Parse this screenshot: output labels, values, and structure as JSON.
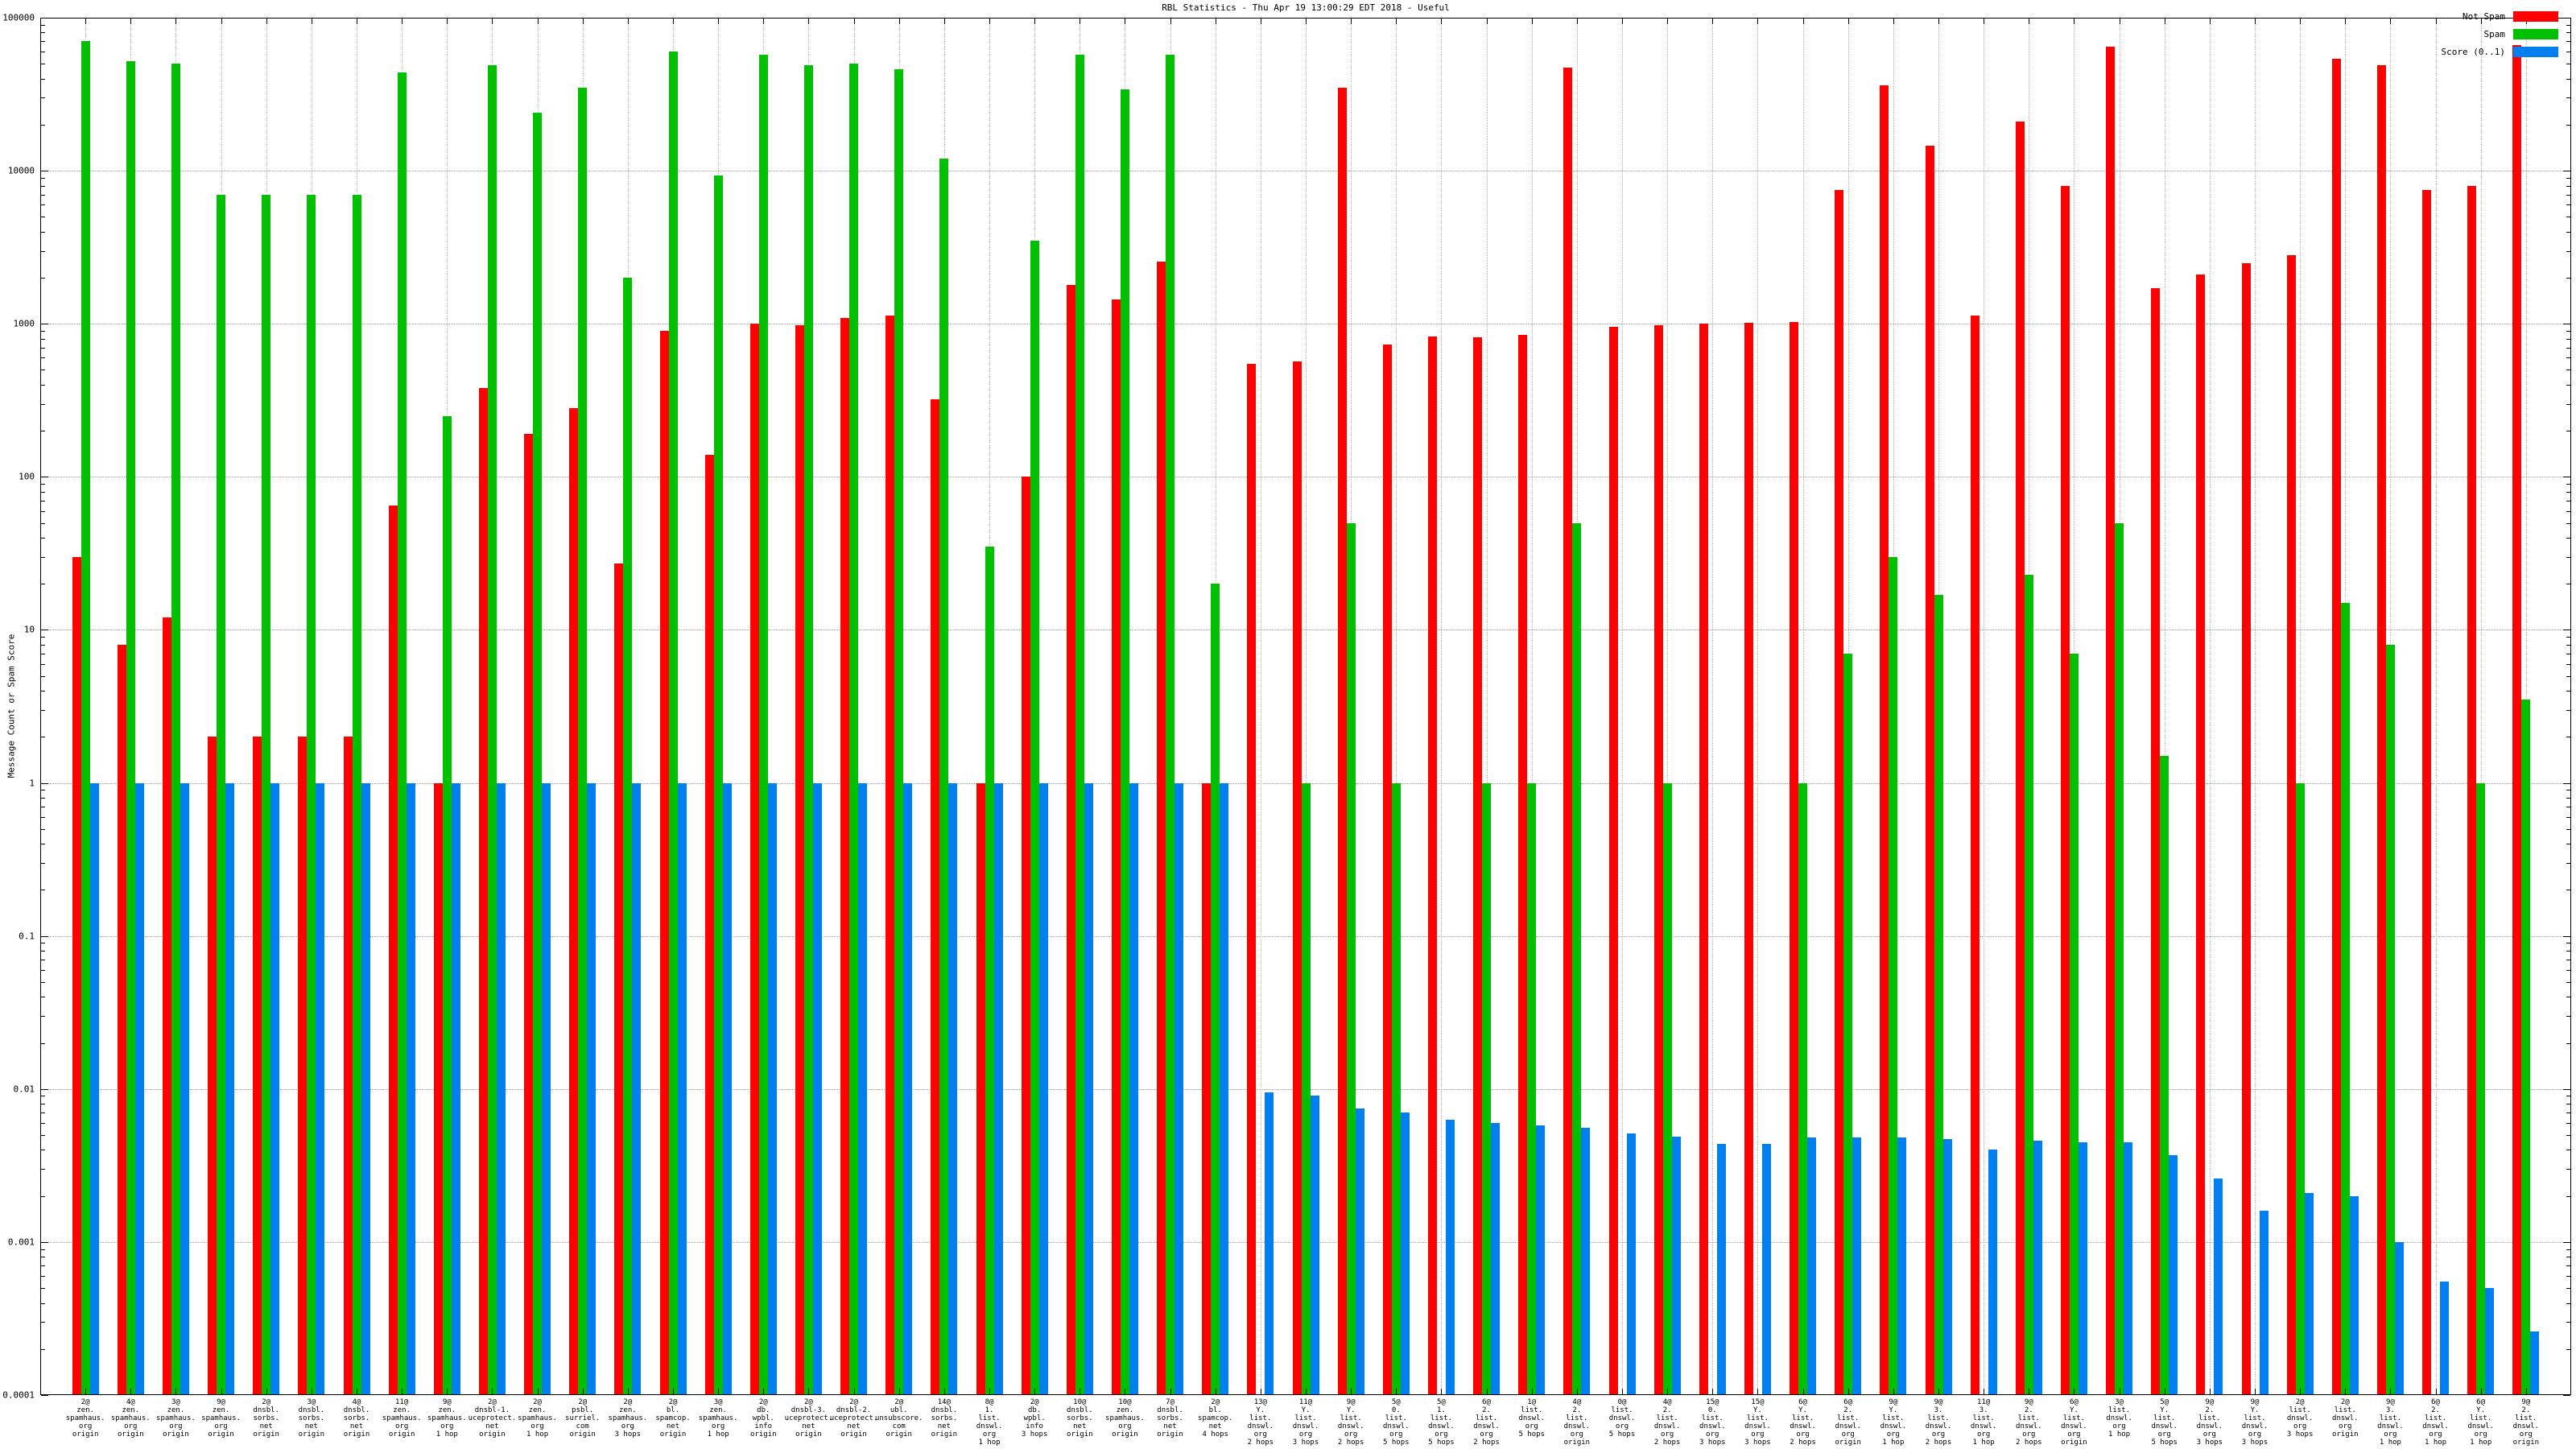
{
  "title": "RBL Statistics - Thu Apr 19 13:00:29 EDT 2018 - Useful",
  "y_axis": {
    "label": "Message Count or Spam Score",
    "scale": "log",
    "ticks": [
      "100000",
      "10000",
      "1000",
      "100",
      "10",
      "1",
      "0.1",
      "0.01",
      "0.001",
      "0.0001"
    ]
  },
  "legend": [
    {
      "name": "not-spam",
      "label": "Not Spam",
      "color": "#ff0000"
    },
    {
      "name": "spam",
      "label": "Spam",
      "color": "#00c000"
    },
    {
      "name": "score",
      "label": "Score (0..1)",
      "color": "#0080f0"
    }
  ],
  "chart_data": {
    "type": "bar",
    "title": "RBL Statistics - Thu Apr 19 13:00:29 EDT 2018 - Useful",
    "xlabel": "",
    "ylabel": "Message Count or Spam Score",
    "yscale": "log",
    "ylim": [
      0.0001,
      100000
    ],
    "grid": true,
    "legend_position": "top-right",
    "series_names": [
      "Not Spam",
      "Spam",
      "Score (0..1)"
    ],
    "series_colors": {
      "not_spam": "#ff0000",
      "spam": "#00c000",
      "score": "#0080f0"
    },
    "groups": [
      {
        "label": "2@\nzen.\nspamhaus.\norg\norigin",
        "not_spam": 30,
        "spam": 70000,
        "score": 1
      },
      {
        "label": "4@\nzen.\nspamhaus.\norg\norigin",
        "not_spam": 8,
        "spam": 52000,
        "score": 1
      },
      {
        "label": "3@\nzen.\nspamhaus.\norg\norigin",
        "not_spam": 12,
        "spam": 50000,
        "score": 1
      },
      {
        "label": "9@\nzen.\nspamhaus.\norg\norigin",
        "not_spam": 2,
        "spam": 7000,
        "score": 1
      },
      {
        "label": "2@\ndnsbl.\nsorbs.\nnet\norigin",
        "not_spam": 2,
        "spam": 7000,
        "score": 1
      },
      {
        "label": "3@\ndnsbl.\nsorbs.\nnet\norigin",
        "not_spam": 2,
        "spam": 7000,
        "score": 1
      },
      {
        "label": "4@\ndnsbl.\nsorbs.\nnet\norigin",
        "not_spam": 2,
        "spam": 7000,
        "score": 1
      },
      {
        "label": "11@\nzen.\nspamhaus.\norg\norigin",
        "not_spam": 65,
        "spam": 44000,
        "score": 1
      },
      {
        "label": "9@\nzen.\nspamhaus.\norg\n1 hop",
        "not_spam": 1,
        "spam": 250,
        "score": 1
      },
      {
        "label": "2@\ndnsbl-1.\nuceprotect.\nnet\norigin",
        "not_spam": 380,
        "spam": 49000,
        "score": 1
      },
      {
        "label": "2@\nzen.\nspamhaus.\norg\n1 hop",
        "not_spam": 190,
        "spam": 24000,
        "score": 1
      },
      {
        "label": "2@\npsbl.\nsurriel.\ncom\norigin",
        "not_spam": 280,
        "spam": 35000,
        "score": 1
      },
      {
        "label": "2@\nzen.\nspamhaus.\norg\n3 hops",
        "not_spam": 27,
        "spam": 2000,
        "score": 1
      },
      {
        "label": "2@\nbl.\nspamcop.\nnet\norigin",
        "not_spam": 900,
        "spam": 60000,
        "score": 1
      },
      {
        "label": "3@\nzen.\nspamhaus.\norg\n1 hop",
        "not_spam": 140,
        "spam": 9300,
        "score": 1
      },
      {
        "label": "2@\ndb.\nwpbl.\ninfo\norigin",
        "not_spam": 1000,
        "spam": 57000,
        "score": 1
      },
      {
        "label": "2@\ndnsbl-3.\nuceprotect.\nnet\norigin",
        "not_spam": 980,
        "spam": 49000,
        "score": 1
      },
      {
        "label": "2@\ndnsbl-2.\nuceprotect.\nnet\norigin",
        "not_spam": 1090,
        "spam": 50000,
        "score": 1
      },
      {
        "label": "2@\nubl.\nunsubscore.\ncom\norigin",
        "not_spam": 1130,
        "spam": 46000,
        "score": 1
      },
      {
        "label": "14@\ndnsbl.\nsorbs.\nnet\norigin",
        "not_spam": 320,
        "spam": 12000,
        "score": 1
      },
      {
        "label": "8@\n1.\nlist.\ndnswl.\norg\n1 hop",
        "not_spam": 1,
        "spam": 35,
        "score": 1
      },
      {
        "label": "2@\ndb.\nwpbl.\ninfo\n3 hops",
        "not_spam": 100,
        "spam": 3500,
        "score": 1
      },
      {
        "label": "10@\ndnsbl.\nsorbs.\nnet\norigin",
        "not_spam": 1800,
        "spam": 57000,
        "score": 1
      },
      {
        "label": "10@\nzen.\nspamhaus.\norg\norigin",
        "not_spam": 1450,
        "spam": 34000,
        "score": 1
      },
      {
        "label": "7@\ndnsbl.\nsorbs.\nnet\norigin",
        "not_spam": 2550,
        "spam": 57000,
        "score": 1
      },
      {
        "label": "2@\nbl.\nspamcop.\nnet\n4 hops",
        "not_spam": 1,
        "spam": 20,
        "score": 1
      },
      {
        "label": "13@\nY.\nlist.\ndnswl.\norg\n2 hops",
        "not_spam": 550,
        "spam": null,
        "score": 0.0095
      },
      {
        "label": "11@\nY.\nlist.\ndnswl.\norg\n3 hops",
        "not_spam": 570,
        "spam": 1,
        "score": 0.009
      },
      {
        "label": "9@\nY.\nlist.\ndnswl.\norg\n2 hops",
        "not_spam": 35000,
        "spam": 50,
        "score": 0.0075
      },
      {
        "label": "5@\n0.\nlist.\ndnswl.\norg\n5 hops",
        "not_spam": 730,
        "spam": 1,
        "score": 0.007
      },
      {
        "label": "5@\n1.\nlist.\ndnswl.\norg\n5 hops",
        "not_spam": 830,
        "spam": null,
        "score": 0.0063
      },
      {
        "label": "6@\n2.\nlist.\ndnswl.\norg\n2 hops",
        "not_spam": 820,
        "spam": 1,
        "score": 0.006
      },
      {
        "label": "1@\nlist.\ndnswl.\norg\n5 hops",
        "not_spam": 850,
        "spam": 1,
        "score": 0.0058
      },
      {
        "label": "4@\n2.\nlist.\ndnswl.\norg\norigin",
        "not_spam": 47000,
        "spam": 50,
        "score": 0.0056
      },
      {
        "label": "0@\nlist.\ndnswl.\norg\n5 hops",
        "not_spam": 950,
        "spam": null,
        "score": 0.0051
      },
      {
        "label": "4@\n2.\nlist.\ndnswl.\norg\n2 hops",
        "not_spam": 980,
        "spam": 1,
        "score": 0.0049
      },
      {
        "label": "15@\n0.\nlist.\ndnswl.\norg\n3 hops",
        "not_spam": 1000,
        "spam": null,
        "score": 0.0044
      },
      {
        "label": "15@\nY.\nlist.\ndnswl.\norg\n3 hops",
        "not_spam": 1010,
        "spam": null,
        "score": 0.0044
      },
      {
        "label": "6@\nY.\nlist.\ndnswl.\norg\n2 hops",
        "not_spam": 1030,
        "spam": 1,
        "score": 0.0048
      },
      {
        "label": "6@\n2.\nlist.\ndnswl.\norg\norigin",
        "not_spam": 7500,
        "spam": 7,
        "score": 0.0048
      },
      {
        "label": "9@\nY.\nlist.\ndnswl.\norg\n1 hop",
        "not_spam": 36000,
        "spam": 30,
        "score": 0.0048
      },
      {
        "label": "9@\n3.\nlist.\ndnswl.\norg\n2 hops",
        "not_spam": 14500,
        "spam": 17,
        "score": 0.0047
      },
      {
        "label": "11@\n3.\nlist.\ndnswl.\norg\n1 hop",
        "not_spam": 1130,
        "spam": null,
        "score": 0.004
      },
      {
        "label": "9@\n2.\nlist.\ndnswl.\norg\n2 hops",
        "not_spam": 21000,
        "spam": 23,
        "score": 0.0046
      },
      {
        "label": "6@\nY.\nlist.\ndnswl.\norg\norigin",
        "not_spam": 8000,
        "spam": 7,
        "score": 0.0045
      },
      {
        "label": "3@\nlist.\ndnswl.\norg\n1 hop",
        "not_spam": 65000,
        "spam": 50,
        "score": 0.0045
      },
      {
        "label": "5@\nY.\nlist.\ndnswl.\norg\n5 hops",
        "not_spam": 1700,
        "spam": 1.5,
        "score": 0.0037
      },
      {
        "label": "9@\n2.\nlist.\ndnswl.\norg\n3 hops",
        "not_spam": 2100,
        "spam": null,
        "score": 0.0026
      },
      {
        "label": "9@\nY.\nlist.\ndnswl.\norg\n3 hops",
        "not_spam": 2500,
        "spam": null,
        "score": 0.0016
      },
      {
        "label": "2@\nlist.\ndnswl.\norg\n3 hops",
        "not_spam": 2800,
        "spam": 1,
        "score": 0.0021
      },
      {
        "label": "2@\nlist.\ndnswl.\norg\norigin",
        "not_spam": 54000,
        "spam": 15,
        "score": 0.002
      },
      {
        "label": "9@\n3.\nlist.\ndnswl.\norg\n1 hop",
        "not_spam": 49000,
        "spam": 8,
        "score": 0.001
      },
      {
        "label": "6@\n2.\nlist.\ndnswl.\norg\n1 hop",
        "not_spam": 7500,
        "spam": null,
        "score": 0.00055
      },
      {
        "label": "6@\nY.\nlist.\ndnswl.\norg\n1 hop",
        "not_spam": 8000,
        "spam": 1,
        "score": 0.0005
      },
      {
        "label": "9@\n2.\nlist.\ndnswl.\norg\norigin",
        "not_spam": 66000,
        "spam": 3.5,
        "score": 0.00026
      }
    ]
  }
}
